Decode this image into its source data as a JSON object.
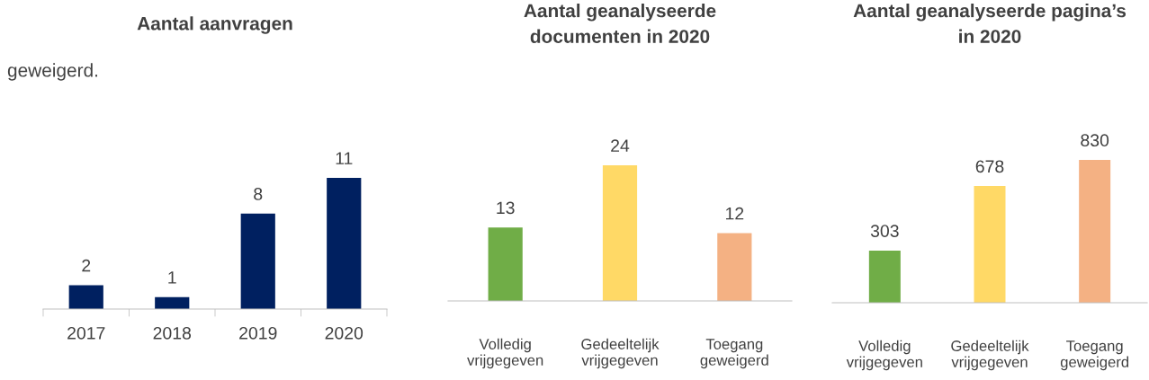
{
  "chart_data": [
    {
      "type": "bar",
      "title": "Aantal aanvragen",
      "annotations": [
        "geweigerd."
      ],
      "categories": [
        "2017",
        "2018",
        "2019",
        "2020"
      ],
      "values": [
        2,
        1,
        8,
        11
      ],
      "color": "#002060",
      "data_labels": true,
      "grid": false,
      "legend": false
    },
    {
      "type": "bar",
      "title": "Aantal geanalyseerde\ndocumenten in 2020",
      "categories": [
        "Volledig\nvrijgegeven",
        "Gedeeltelijk\nvrijgegeven",
        "Toegang\ngeweigerd"
      ],
      "values": [
        13,
        24,
        12
      ],
      "colors": [
        "#70ad47",
        "#ffd966",
        "#f4b183"
      ],
      "data_labels": true,
      "grid": false,
      "legend": false
    },
    {
      "type": "bar",
      "title": "Aantal geanalyseerde pagina’s\nin 2020",
      "categories": [
        "Volledig\nvrijgegeven",
        "Gedeeltelijk\nvrijgegeven",
        "Toegang\ngeweigerd"
      ],
      "values": [
        303,
        678,
        830
      ],
      "colors": [
        "#70ad47",
        "#ffd966",
        "#f4b183"
      ],
      "data_labels": true,
      "grid": false,
      "legend": false
    }
  ]
}
